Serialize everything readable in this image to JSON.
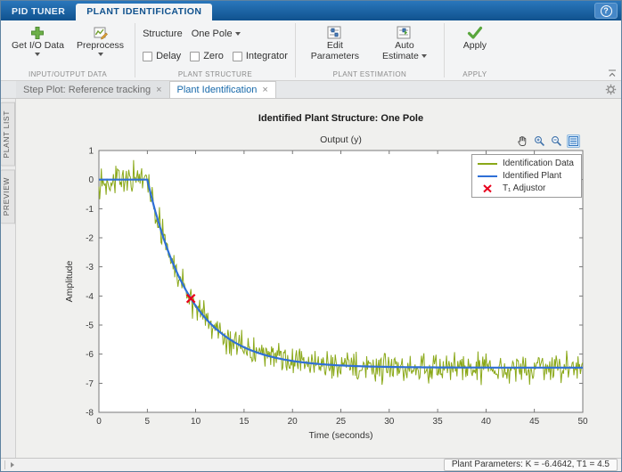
{
  "window": {
    "help": "?"
  },
  "toolstrip_tabs": [
    {
      "label": "PID TUNER"
    },
    {
      "label": "PLANT IDENTIFICATION"
    }
  ],
  "ribbon": {
    "io_group": {
      "caption": "INPUT/OUTPUT DATA",
      "get_io_data": "Get I/O Data",
      "preprocess": "Preprocess"
    },
    "structure_group": {
      "caption": "PLANT STRUCTURE",
      "structure_label": "Structure",
      "structure_value": "One Pole",
      "delay": "Delay",
      "zero": "Zero",
      "integrator": "Integrator"
    },
    "estimation_group": {
      "caption": "PLANT ESTIMATION",
      "edit_parameters": "Edit Parameters",
      "auto_estimate": "Auto Estimate"
    },
    "apply_group": {
      "caption": "APPLY",
      "apply": "Apply"
    }
  },
  "doc_tabs": [
    {
      "label": "Step Plot: Reference tracking",
      "close": "×"
    },
    {
      "label": "Plant Identification",
      "close": "×"
    }
  ],
  "side_rail": [
    {
      "label": "PLANT LIST"
    },
    {
      "label": "PREVIEW"
    }
  ],
  "statusbar": {
    "plant_parameters": "Plant Parameters: K = -6.4642, T1 = 4.5"
  },
  "chart_data": {
    "type": "line",
    "title": "Identified Plant Structure: One Pole",
    "axes_title": "Output (y)",
    "xlabel": "Time (seconds)",
    "ylabel": "Amplitude",
    "xlim": [
      0,
      50
    ],
    "ylim": [
      -8,
      1
    ],
    "xticks": [
      0,
      5,
      10,
      15,
      20,
      25,
      30,
      35,
      40,
      45,
      50
    ],
    "yticks": [
      -8,
      -7,
      -6,
      -5,
      -4,
      -3,
      -2,
      -1,
      0,
      1
    ],
    "grid": false,
    "legend": {
      "position": "top-right",
      "entries": [
        {
          "label": "Identification Data",
          "marker": "line",
          "color": "#8aa818"
        },
        {
          "label": "Identified Plant",
          "marker": "line",
          "color": "#2e6fd6"
        },
        {
          "label": "T₁ Adjustor",
          "marker": "x",
          "color": "#e8001c"
        }
      ]
    },
    "series": [
      {
        "name": "Identification Data",
        "color": "#8aa818",
        "model": "noisy_first_order_step",
        "params": {
          "K": -6.4642,
          "T1": 4.5,
          "step_time": 5,
          "noise_std": 0.24,
          "seed": 13,
          "n": 600
        }
      },
      {
        "name": "Identified Plant",
        "color": "#2e6fd6",
        "model": "first_order_step",
        "params": {
          "K": -6.4642,
          "T1": 4.5,
          "step_time": 5,
          "n": 300
        }
      }
    ],
    "markers": [
      {
        "label": "T₁ Adjustor",
        "x": 9.5,
        "y": -4.0866,
        "color": "#e8001c",
        "shape": "x"
      }
    ]
  }
}
